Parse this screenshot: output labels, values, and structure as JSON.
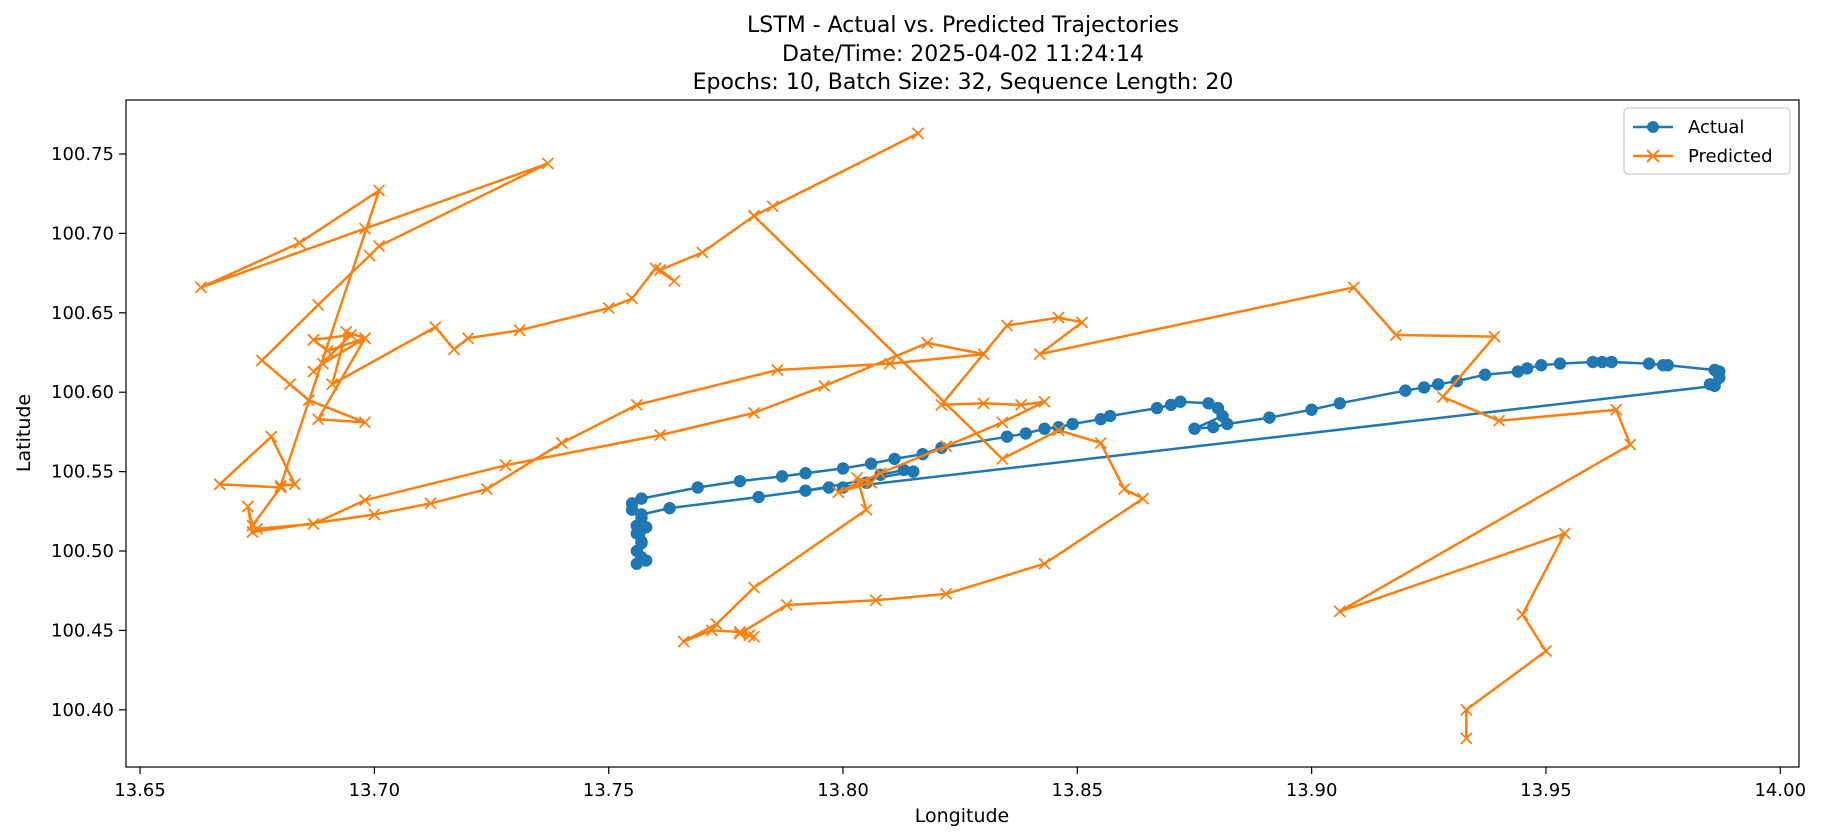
{
  "chart_data": {
    "type": "line",
    "title": "LSTM - Actual vs. Predicted Trajectories",
    "subtitle_lines": [
      "Date/Time: 2025-04-02 11:24:14",
      "Epochs: 10, Batch Size: 32, Sequence Length: 20"
    ],
    "xlabel": "Longitude",
    "ylabel": "Latitude",
    "xlim": [
      13.647,
      14.004
    ],
    "ylim": [
      100.364,
      100.784
    ],
    "xticks": [
      13.65,
      13.7,
      13.75,
      13.8,
      13.85,
      13.9,
      13.95,
      14.0
    ],
    "xtick_labels": [
      "13.65",
      "13.70",
      "13.75",
      "13.80",
      "13.85",
      "13.90",
      "13.95",
      "14.00"
    ],
    "yticks": [
      100.4,
      100.45,
      100.5,
      100.55,
      100.6,
      100.65,
      100.7,
      100.75
    ],
    "ytick_labels": [
      "100.40",
      "100.45",
      "100.50",
      "100.55",
      "100.60",
      "100.65",
      "100.70",
      "100.75"
    ],
    "grid": false,
    "legend_position": "top-right",
    "series": [
      {
        "name": "Actual",
        "color": "#1f77b4",
        "marker": "circle",
        "points": [
          [
            13.758,
            100.494
          ],
          [
            13.757,
            100.496
          ],
          [
            13.756,
            100.5
          ],
          [
            13.757,
            100.506
          ],
          [
            13.756,
            100.511
          ],
          [
            13.756,
            100.516
          ],
          [
            13.757,
            100.521
          ],
          [
            13.755,
            100.526
          ],
          [
            13.755,
            100.53
          ],
          [
            13.757,
            100.533
          ],
          [
            13.769,
            100.54
          ],
          [
            13.778,
            100.544
          ],
          [
            13.787,
            100.547
          ],
          [
            13.792,
            100.549
          ],
          [
            13.8,
            100.552
          ],
          [
            13.806,
            100.555
          ],
          [
            13.811,
            100.558
          ],
          [
            13.817,
            100.561
          ],
          [
            13.821,
            100.565
          ],
          [
            13.835,
            100.572
          ],
          [
            13.839,
            100.574
          ],
          [
            13.843,
            100.577
          ],
          [
            13.846,
            100.578
          ],
          [
            13.849,
            100.58
          ],
          [
            13.855,
            100.583
          ],
          [
            13.857,
            100.585
          ],
          [
            13.867,
            100.59
          ],
          [
            13.87,
            100.592
          ],
          [
            13.872,
            100.594
          ],
          [
            13.878,
            100.593
          ],
          [
            13.88,
            100.59
          ],
          [
            13.881,
            100.585
          ],
          [
            13.875,
            100.577
          ],
          [
            13.879,
            100.578
          ],
          [
            13.882,
            100.58
          ],
          [
            13.891,
            100.584
          ],
          [
            13.9,
            100.589
          ],
          [
            13.906,
            100.593
          ],
          [
            13.92,
            100.601
          ],
          [
            13.924,
            100.603
          ],
          [
            13.927,
            100.605
          ],
          [
            13.931,
            100.607
          ],
          [
            13.937,
            100.611
          ],
          [
            13.944,
            100.613
          ],
          [
            13.946,
            100.615
          ],
          [
            13.949,
            100.617
          ],
          [
            13.953,
            100.618
          ],
          [
            13.96,
            100.619
          ],
          [
            13.962,
            100.619
          ],
          [
            13.964,
            100.619
          ],
          [
            13.972,
            100.618
          ],
          [
            13.975,
            100.617
          ],
          [
            13.976,
            100.617
          ],
          [
            13.986,
            100.614
          ],
          [
            13.987,
            100.613
          ],
          [
            13.987,
            100.609
          ],
          [
            13.985,
            100.605
          ],
          [
            13.986,
            100.604
          ],
          [
            13.8,
            100.54
          ],
          [
            13.805,
            100.543
          ],
          [
            13.808,
            100.548
          ],
          [
            13.813,
            100.551
          ],
          [
            13.815,
            100.55
          ],
          [
            13.792,
            100.538
          ],
          [
            13.797,
            100.54
          ],
          [
            13.782,
            100.534
          ],
          [
            13.763,
            100.527
          ],
          [
            13.757,
            100.523
          ],
          [
            13.758,
            100.515
          ],
          [
            13.757,
            100.505
          ],
          [
            13.756,
            100.492
          ]
        ]
      },
      {
        "name": "Predicted",
        "color": "#ff7f0e",
        "marker": "x",
        "points": [
          [
            13.933,
            100.382
          ],
          [
            13.933,
            100.4
          ],
          [
            13.95,
            100.437
          ],
          [
            13.945,
            100.46
          ],
          [
            13.954,
            100.511
          ],
          [
            13.906,
            100.462
          ],
          [
            13.968,
            100.567
          ],
          [
            13.965,
            100.589
          ],
          [
            13.94,
            100.582
          ],
          [
            13.928,
            100.597
          ],
          [
            13.939,
            100.635
          ],
          [
            13.918,
            100.636
          ],
          [
            13.909,
            100.666
          ],
          [
            13.842,
            100.624
          ],
          [
            13.851,
            100.644
          ],
          [
            13.846,
            100.647
          ],
          [
            13.835,
            100.642
          ],
          [
            13.821,
            100.592
          ],
          [
            13.83,
            100.593
          ],
          [
            13.838,
            100.592
          ],
          [
            13.843,
            100.594
          ],
          [
            13.834,
            100.581
          ],
          [
            13.822,
            100.566
          ],
          [
            13.808,
            100.549
          ],
          [
            13.799,
            100.537
          ],
          [
            13.806,
            100.543
          ],
          [
            13.803,
            100.546
          ],
          [
            13.805,
            100.526
          ],
          [
            13.781,
            100.477
          ],
          [
            13.773,
            100.454
          ],
          [
            13.766,
            100.443
          ],
          [
            13.772,
            100.45
          ],
          [
            13.778,
            100.449
          ],
          [
            13.78,
            100.447
          ],
          [
            13.781,
            100.446
          ],
          [
            13.778,
            100.448
          ],
          [
            13.788,
            100.466
          ],
          [
            13.807,
            100.469
          ],
          [
            13.822,
            100.473
          ],
          [
            13.843,
            100.492
          ],
          [
            13.864,
            100.533
          ],
          [
            13.86,
            100.539
          ],
          [
            13.855,
            100.568
          ],
          [
            13.846,
            100.576
          ],
          [
            13.834,
            100.558
          ],
          [
            13.781,
            100.711
          ],
          [
            13.785,
            100.717
          ],
          [
            13.816,
            100.763
          ],
          [
            13.781,
            100.711
          ],
          [
            13.77,
            100.688
          ],
          [
            13.761,
            100.677
          ],
          [
            13.764,
            100.67
          ],
          [
            13.76,
            100.678
          ],
          [
            13.755,
            100.659
          ],
          [
            13.75,
            100.653
          ],
          [
            13.731,
            100.639
          ],
          [
            13.72,
            100.634
          ],
          [
            13.717,
            100.627
          ],
          [
            13.713,
            100.641
          ],
          [
            13.691,
            100.605
          ],
          [
            13.694,
            100.638
          ],
          [
            13.698,
            100.634
          ],
          [
            13.689,
            100.618
          ],
          [
            13.687,
            100.613
          ],
          [
            13.695,
            100.636
          ],
          [
            13.687,
            100.633
          ],
          [
            13.69,
            100.626
          ],
          [
            13.698,
            100.634
          ],
          [
            13.688,
            100.583
          ],
          [
            13.698,
            100.581
          ],
          [
            13.686,
            100.595
          ],
          [
            13.682,
            100.605
          ],
          [
            13.676,
            100.62
          ],
          [
            13.688,
            100.655
          ],
          [
            13.699,
            100.686
          ],
          [
            13.701,
            100.692
          ],
          [
            13.737,
            100.744
          ],
          [
            13.698,
            100.703
          ],
          [
            13.663,
            100.666
          ],
          [
            13.684,
            100.694
          ],
          [
            13.701,
            100.727
          ],
          [
            13.68,
            100.541
          ],
          [
            13.683,
            100.542
          ],
          [
            13.678,
            100.572
          ],
          [
            13.667,
            100.542
          ],
          [
            13.68,
            100.54
          ],
          [
            13.674,
            100.516
          ],
          [
            13.673,
            100.528
          ],
          [
            13.674,
            100.512
          ],
          [
            13.7,
            100.523
          ],
          [
            13.712,
            100.53
          ],
          [
            13.724,
            100.539
          ],
          [
            13.74,
            100.568
          ],
          [
            13.756,
            100.592
          ],
          [
            13.786,
            100.614
          ],
          [
            13.81,
            100.618
          ],
          [
            13.83,
            100.624
          ],
          [
            13.818,
            100.631
          ],
          [
            13.796,
            100.604
          ],
          [
            13.781,
            100.587
          ],
          [
            13.761,
            100.573
          ],
          [
            13.728,
            100.554
          ],
          [
            13.698,
            100.532
          ],
          [
            13.687,
            100.517
          ],
          [
            13.675,
            100.514
          ]
        ]
      }
    ]
  }
}
